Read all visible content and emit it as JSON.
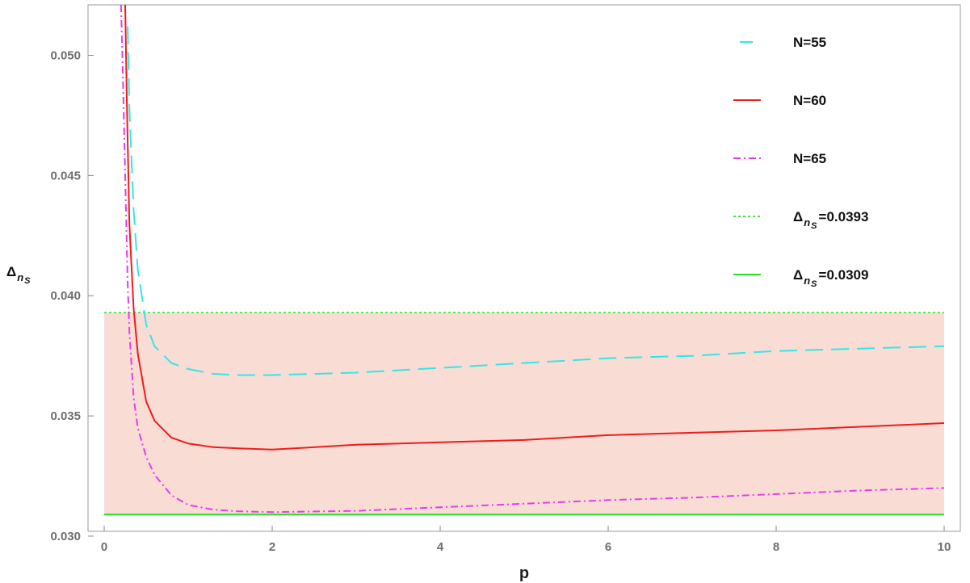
{
  "chart_data": {
    "type": "line",
    "title": "",
    "xlabel": "p",
    "ylabel": {
      "base": "Δ",
      "sub": "n",
      "subsub": "S"
    },
    "xlim": [
      0,
      10
    ],
    "ylim": [
      0.0302,
      0.0521
    ],
    "xticks": [
      0,
      2,
      4,
      6,
      8,
      10
    ],
    "yticks": [
      0.03,
      0.035,
      0.04,
      0.045,
      0.05
    ],
    "ytick_labels": [
      "0.030",
      "0.035",
      "0.040",
      "0.045",
      "0.050"
    ],
    "grid": false,
    "legend_position": "top-right",
    "shaded_band": {
      "from": 0.0309,
      "to": 0.0393,
      "color": "#f9ddd5"
    },
    "series": [
      {
        "name": "N=55",
        "style": "dashed",
        "color": "#33e6e6",
        "x": [
          0.28,
          0.3,
          0.35,
          0.4,
          0.5,
          0.6,
          0.8,
          1.0,
          1.3,
          1.6,
          2.0,
          3.0,
          4.0,
          5.0,
          6.0,
          7.0,
          8.0,
          9.0,
          10.0
        ],
        "y": [
          0.0512,
          0.0478,
          0.0436,
          0.0411,
          0.0388,
          0.0379,
          0.0372,
          0.03695,
          0.03675,
          0.0367,
          0.0367,
          0.0368,
          0.037,
          0.0372,
          0.0374,
          0.0375,
          0.0377,
          0.0378,
          0.0379
        ]
      },
      {
        "name": "N=60",
        "style": "solid",
        "color": "#ee1c1c",
        "x": [
          0.25,
          0.27,
          0.3,
          0.35,
          0.4,
          0.5,
          0.6,
          0.8,
          1.0,
          1.3,
          1.6,
          2.0,
          3.0,
          4.0,
          5.0,
          6.0,
          7.0,
          8.0,
          9.0,
          10.0
        ],
        "y": [
          0.0521,
          0.048,
          0.043,
          0.0395,
          0.0376,
          0.0356,
          0.0348,
          0.0341,
          0.03385,
          0.0337,
          0.03365,
          0.0336,
          0.0338,
          0.0339,
          0.034,
          0.0342,
          0.0343,
          0.0344,
          0.03455,
          0.0347
        ]
      },
      {
        "name": "N=65",
        "style": "dashdot",
        "color": "#e83be8",
        "x": [
          0.2,
          0.22,
          0.25,
          0.28,
          0.3,
          0.35,
          0.4,
          0.5,
          0.6,
          0.8,
          1.0,
          1.3,
          1.6,
          2.0,
          3.0,
          4.0,
          5.0,
          6.0,
          7.0,
          8.0,
          9.0,
          10.0
        ],
        "y": [
          0.0521,
          0.0495,
          0.045,
          0.0405,
          0.0385,
          0.0358,
          0.0345,
          0.0333,
          0.03255,
          0.0317,
          0.0313,
          0.0311,
          0.03103,
          0.031,
          0.03105,
          0.0312,
          0.03135,
          0.0315,
          0.0316,
          0.03175,
          0.0319,
          0.032
        ]
      },
      {
        "name": "Δ_nS=0.0393",
        "label_parts": {
          "base": "Δ",
          "sub": "n",
          "subsub": "S",
          "rest": "=0.0393"
        },
        "style": "dotted",
        "color": "#3ee83e",
        "x": [
          0,
          10
        ],
        "y": [
          0.0393,
          0.0393
        ]
      },
      {
        "name": "Δ_nS=0.0309",
        "label_parts": {
          "base": "Δ",
          "sub": "n",
          "subsub": "S",
          "rest": "=0.0309"
        },
        "style": "solid",
        "color": "#22dd22",
        "x": [
          0,
          10
        ],
        "y": [
          0.0309,
          0.0309
        ]
      }
    ]
  }
}
